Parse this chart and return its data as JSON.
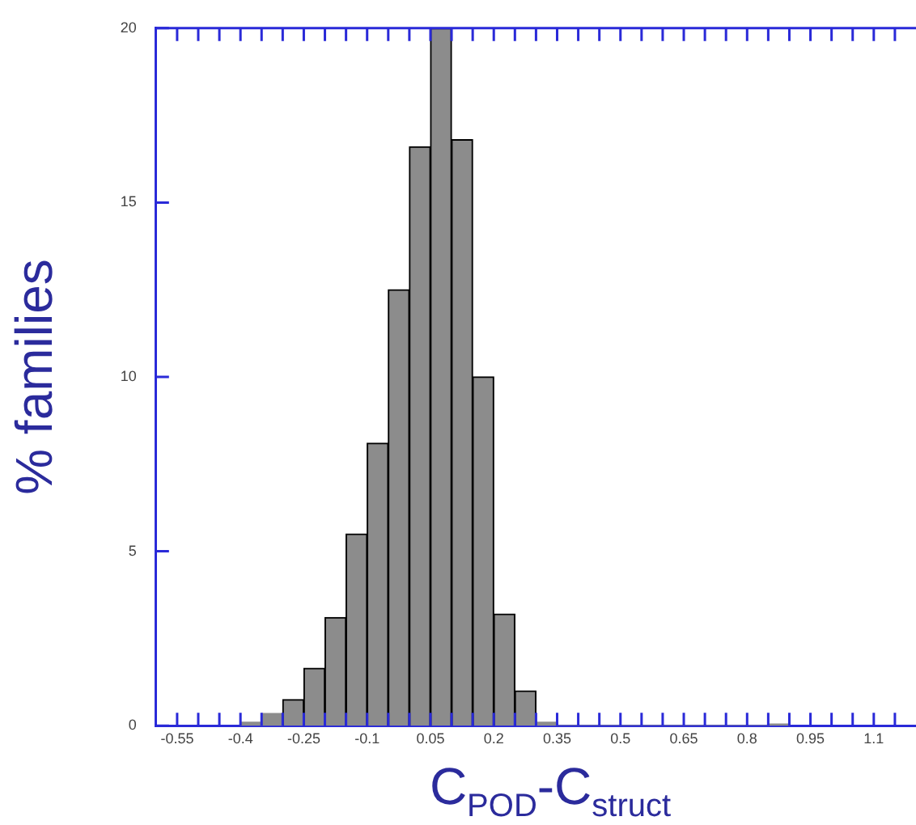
{
  "chart_data": {
    "type": "histogram",
    "ylabel": "% families",
    "xlabel": "C$_{POD}$-C$_{struct}$",
    "bins": [
      -0.4,
      -0.35,
      -0.3,
      -0.25,
      -0.2,
      -0.15,
      -0.1,
      -0.05,
      0,
      0.05,
      0.1,
      0.15,
      0.2,
      0.25,
      0.3,
      0.35,
      0.4,
      0.45,
      0.5,
      0.55,
      0.6,
      0.65,
      0.7,
      0.75,
      0.8,
      0.85,
      0.9
    ],
    "values": [
      0.1,
      0.35,
      0.75,
      1.65,
      3.1,
      5.5,
      8.1,
      12.5,
      16.6,
      20,
      16.8,
      10,
      3.2,
      1,
      0.1,
      0,
      0,
      0,
      0,
      0,
      0,
      0,
      0,
      0,
      0,
      0.05
    ],
    "color": "#8c8c8c",
    "xlim": [
      -0.6,
      1.2
    ],
    "xticks": [
      -0.55,
      {
        "value": -0.5,
        "label": null
      },
      {
        "value": -0.45,
        "label": null
      },
      -0.4,
      {
        "value": -0.35,
        "label": null
      },
      {
        "value": -0.3,
        "label": null
      },
      -0.25,
      {
        "value": -0.2,
        "label": null
      },
      {
        "value": -0.15,
        "label": null
      },
      -0.1,
      {
        "value": -0.05,
        "label": null
      },
      {
        "value": 0,
        "label": null
      },
      0.05,
      {
        "value": 0.1,
        "label": null
      },
      {
        "value": 0.15,
        "label": null
      },
      0.2,
      {
        "value": 0.25,
        "label": null
      },
      {
        "value": 0.3,
        "label": null
      },
      0.35,
      {
        "value": 0.4,
        "label": null
      },
      {
        "value": 0.45,
        "label": null
      },
      0.5,
      {
        "value": 0.55,
        "label": null
      },
      {
        "value": 0.6,
        "label": null
      },
      0.65,
      {
        "value": 0.7,
        "label": null
      },
      {
        "value": 0.75,
        "label": null
      },
      0.8,
      {
        "value": 0.85,
        "label": null
      },
      {
        "value": 0.9,
        "label": null
      },
      0.95,
      {
        "value": 1,
        "label": null
      },
      {
        "value": 1.05,
        "label": null
      },
      1.1,
      {
        "value": 1.15,
        "label": null
      }
    ],
    "ylim": [
      0,
      20
    ],
    "yticks": [
      0,
      5,
      10,
      15,
      20
    ],
    "grid": false,
    "legend": false
  }
}
